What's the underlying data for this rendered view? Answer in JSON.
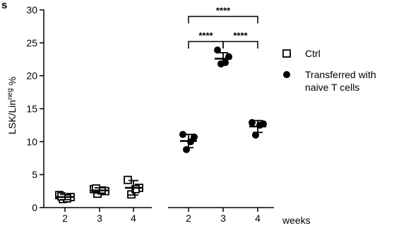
{
  "chart_data": {
    "type": "scatter",
    "panel_label": "s",
    "ylabel_main": "LSK/Lin",
    "ylabel_sup": "neg",
    "ylabel_suffix": " %",
    "xlabel": "weeks",
    "ylim": [
      0,
      30
    ],
    "yticks": [
      0,
      5,
      10,
      15,
      20,
      25,
      30
    ],
    "grid": false,
    "legend_position": "right",
    "colors": {
      "ink": "#000000",
      "open_fill": "#ffffff"
    },
    "groups": [
      {
        "legend": "Ctrl",
        "marker": "open-square",
        "points": [
          {
            "week": "2",
            "values": [
              1.9,
              1.6,
              1.3,
              1.4,
              1.7
            ],
            "mean": 1.6,
            "sd": 0.4
          },
          {
            "week": "3",
            "values": [
              2.8,
              2.5,
              2.1,
              2.6,
              2.9
            ],
            "mean": 2.6,
            "sd": 0.4
          },
          {
            "week": "4",
            "values": [
              4.2,
              3.0,
              2.0,
              2.8
            ],
            "mean": 3.0,
            "sd": 1.1
          }
        ]
      },
      {
        "legend": "Transferred with\nnaive T cells",
        "marker": "filled-circle",
        "points": [
          {
            "week": "2",
            "values": [
              11.1,
              10.7,
              8.8,
              10.0
            ],
            "mean": 10.1,
            "sd": 1.0
          },
          {
            "week": "3",
            "values": [
              23.9,
              22.9,
              21.8,
              22.0
            ],
            "mean": 22.6,
            "sd": 0.9
          },
          {
            "week": "4",
            "values": [
              12.9,
              12.7,
              11.0,
              12.5
            ],
            "mean": 12.3,
            "sd": 0.9
          }
        ]
      }
    ],
    "significance": [
      {
        "from": "Transferred with\nnaive T cells|2",
        "to": "Transferred with\nnaive T cells|4",
        "label": "****",
        "y": 29.0
      },
      {
        "from": "Transferred with\nnaive T cells|2",
        "to": "Transferred with\nnaive T cells|3",
        "label": "****",
        "y": 25.2
      },
      {
        "from": "Transferred with\nnaive T cells|3",
        "to": "Transferred with\nnaive T cells|4",
        "label": "****",
        "y": 25.2
      }
    ]
  }
}
